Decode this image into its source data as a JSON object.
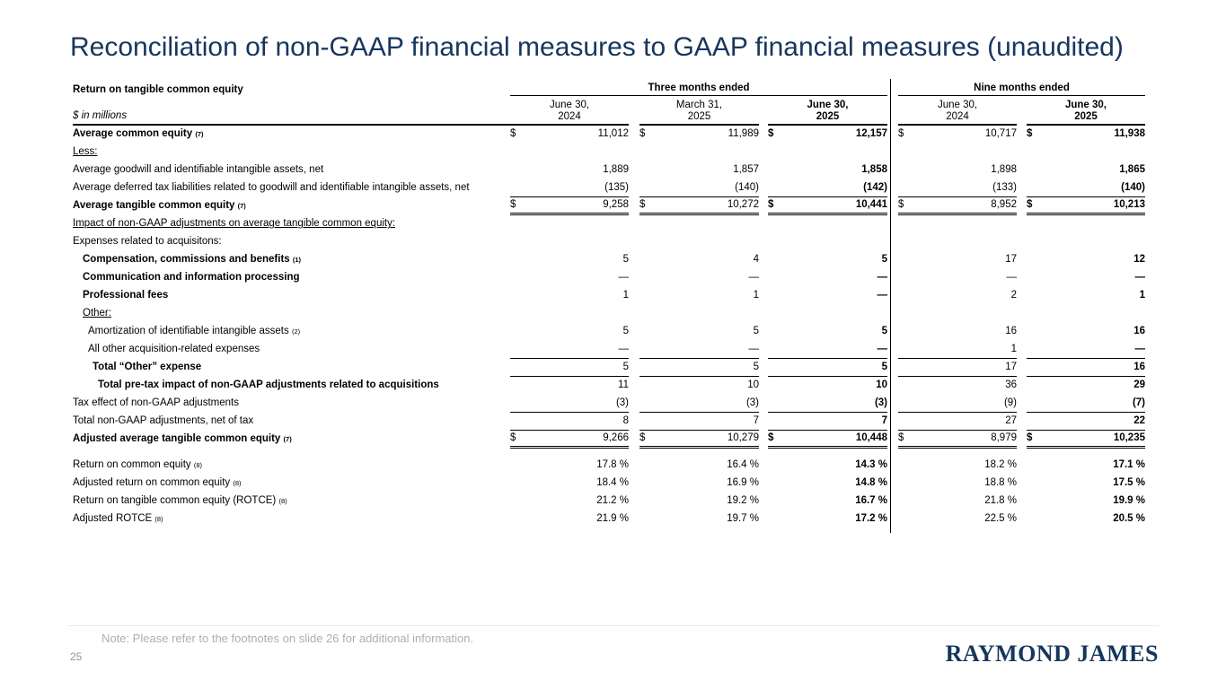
{
  "title": "Reconciliation of non-GAAP financial measures to GAAP financial measures (unaudited)",
  "table": {
    "section_label": "Return on tangible common equity",
    "unit_label": "$ in millions",
    "groups": [
      {
        "label": "Three months ended",
        "span": 3
      },
      {
        "label": "Nine months ended",
        "span": 2
      }
    ],
    "columns": [
      {
        "line1": "June 30,",
        "line2": "2024",
        "bold": false
      },
      {
        "line1": "March 31,",
        "line2": "2025",
        "bold": false
      },
      {
        "line1": "June 30,",
        "line2": "2025",
        "bold": true
      },
      {
        "line1": "June 30,",
        "line2": "2024",
        "bold": false
      },
      {
        "line1": "June 30,",
        "line2": "2025",
        "bold": true
      }
    ],
    "rows": [
      {
        "label": "Average common equity",
        "sup": "(7)",
        "bold": true,
        "dollar": true,
        "values": [
          "11,012",
          "11,989",
          "12,157",
          "10,717",
          "11,938"
        ]
      },
      {
        "label": "Less:",
        "underline": true,
        "values": [
          "",
          "",
          "",
          "",
          ""
        ]
      },
      {
        "label": "Average goodwill and identifiable intangible assets, net",
        "values": [
          "1,889",
          "1,857",
          "1,858",
          "1,898",
          "1,865"
        ]
      },
      {
        "label": "Average deferred tax liabilities related to goodwill and identifiable intangible assets, net",
        "rule": "single",
        "values": [
          "(135)",
          "(140)",
          "(142)",
          "(133)",
          "(140)"
        ]
      },
      {
        "label": "Average tangible common equity",
        "sup": "(7)",
        "bold": true,
        "dollar": true,
        "rule": "double",
        "values": [
          "9,258",
          "10,272",
          "10,441",
          "8,952",
          "10,213"
        ]
      },
      {
        "label": "Impact of non-GAAP adjustments on average tangible common equity:",
        "underline": true,
        "values": [
          "",
          "",
          "",
          "",
          ""
        ]
      },
      {
        "label": "Expenses related to acquisitons:",
        "values": [
          "",
          "",
          "",
          "",
          ""
        ]
      },
      {
        "label": "Compensation, commissions and benefits",
        "sup": "(1)",
        "bold": true,
        "indent": 1,
        "values": [
          "5",
          "4",
          "5",
          "17",
          "12"
        ]
      },
      {
        "label": "Communication and information processing",
        "bold": true,
        "indent": 1,
        "values": [
          "—",
          "—",
          "—",
          "—",
          "—"
        ]
      },
      {
        "label": "Professional fees",
        "bold": true,
        "indent": 1,
        "values": [
          "1",
          "1",
          "—",
          "2",
          "1"
        ]
      },
      {
        "label": "Other:",
        "underline": true,
        "indent": 1,
        "values": [
          "",
          "",
          "",
          "",
          ""
        ]
      },
      {
        "label": "Amortization of identifiable intangible assets",
        "sup": "(2)",
        "indent": 2,
        "values": [
          "5",
          "5",
          "5",
          "16",
          "16"
        ]
      },
      {
        "label": "All other acquisition-related expenses",
        "indent": 2,
        "rule": "single",
        "values": [
          "—",
          "—",
          "—",
          "1",
          "—"
        ]
      },
      {
        "label": "Total “Other” expense",
        "bold": true,
        "indent": 3,
        "rule": "single",
        "values": [
          "5",
          "5",
          "5",
          "17",
          "16"
        ]
      },
      {
        "label": "Total pre-tax impact of non-GAAP adjustments related to acquisitions",
        "bold": true,
        "indent": 4,
        "values": [
          "11",
          "10",
          "10",
          "36",
          "29"
        ]
      },
      {
        "label": "Tax effect of non-GAAP adjustments",
        "rule": "single",
        "values": [
          "(3)",
          "(3)",
          "(3)",
          "(9)",
          "(7)"
        ]
      },
      {
        "label": "Total non-GAAP adjustments, net of tax",
        "rule": "single",
        "values": [
          "8",
          "7",
          "7",
          "27",
          "22"
        ]
      },
      {
        "label": "Adjusted average tangible common equity",
        "sup": "(7)",
        "bold": true,
        "dollar": true,
        "rule": "double",
        "values": [
          "9,266",
          "10,279",
          "10,448",
          "8,979",
          "10,235"
        ]
      },
      {
        "label": "Return on common equity",
        "sup": "(8)",
        "gap": true,
        "values": [
          "17.8 %",
          "16.4 %",
          "14.3 %",
          "18.2 %",
          "17.1 %"
        ]
      },
      {
        "label": "Adjusted return on common equity",
        "sup": "(8)",
        "values": [
          "18.4 %",
          "16.9 %",
          "14.8 %",
          "18.8 %",
          "17.5 %"
        ]
      },
      {
        "label": "Return on tangible common equity (ROTCE)",
        "sup": "(8)",
        "values": [
          "21.2 %",
          "19.2 %",
          "16.7 %",
          "21.8 %",
          "19.9 %"
        ]
      },
      {
        "label": "Adjusted ROTCE",
        "sup": "(8)",
        "values": [
          "21.9 %",
          "19.7 %",
          "17.2 %",
          "22.5 %",
          "20.5 %"
        ]
      }
    ]
  },
  "footer": {
    "note": "Note: Please refer to the footnotes on slide 26 for additional information.",
    "page_number": "25",
    "logo": "RAYMOND JAMES"
  },
  "colors": {
    "title_navy": "#17365d",
    "logo_navy": "#16365c",
    "note_gray": "#a8b0b8"
  }
}
